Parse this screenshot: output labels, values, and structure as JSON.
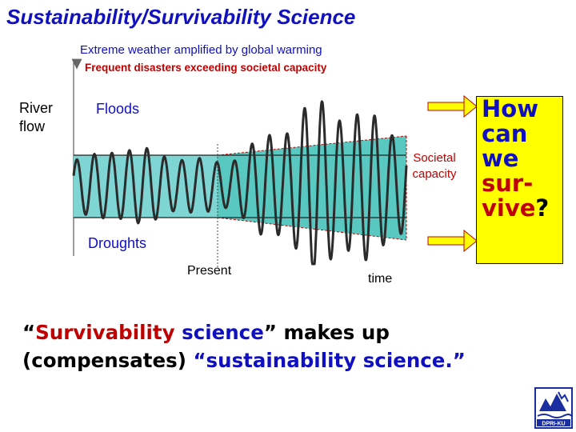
{
  "title": "Sustainability/Survivability Science",
  "subtitle_1": "Extreme weather amplified by global warming",
  "subtitle_2": "Frequent disasters exceeding societal capacity",
  "labels": {
    "river_flow_1": "River",
    "river_flow_2": "flow",
    "floods": "Floods",
    "societal_1": "Societal",
    "societal_2": "capacity",
    "droughts": "Droughts",
    "present": "Present",
    "time": "time"
  },
  "question": {
    "line1": "How",
    "line2": "can",
    "line3": "we",
    "line4": "sur-",
    "line5_a": "vive",
    "line5_b": "?"
  },
  "statement": {
    "q_open": "“",
    "w1": "Survivability",
    "w2": " science",
    "q_close": "”",
    "w3": " makes up",
    "w4": "(compensates) ",
    "w5": "“sustainability science.”"
  },
  "logo_text": "DPRI-KU",
  "colors": {
    "blue": "#1010c0",
    "red": "#c00000",
    "band_left": "#7fd4d4",
    "band_right": "#58c8c0",
    "box": "#ffff00"
  }
}
